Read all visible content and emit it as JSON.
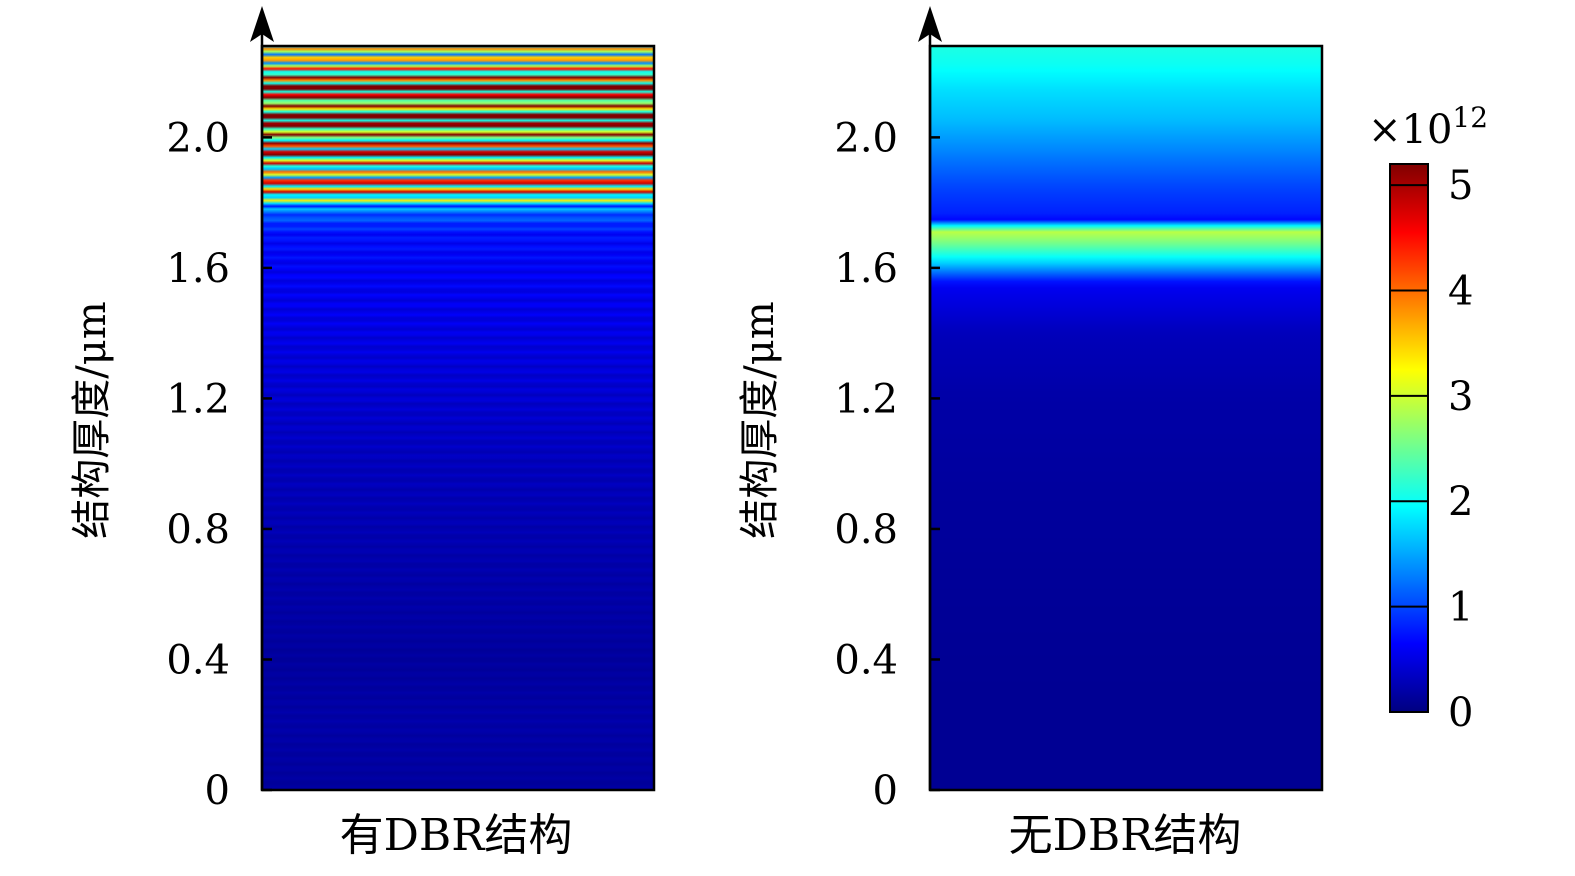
{
  "chart_data": [
    {
      "type": "heatmap",
      "title": "",
      "xlabel": "有DBR结构",
      "ylabel": "结构厚度/μm",
      "ylim": [
        0,
        2.28
      ],
      "yticks": [
        0,
        0.4,
        0.8,
        1.2,
        1.6,
        2.0
      ],
      "ytick_labels": [
        "0",
        "0.4",
        "0.8",
        "1.2",
        "1.6",
        "2.0"
      ],
      "profile": {
        "description_units": "value ×10^12 versus structure thickness (μm)",
        "y": [
          0,
          0.2,
          0.4,
          0.6,
          0.8,
          1.0,
          1.2,
          1.4,
          1.6,
          1.7,
          1.78,
          1.85,
          1.9,
          1.95,
          2.0,
          2.05,
          2.1,
          2.15,
          2.2,
          2.28
        ],
        "values": [
          0.15,
          0.2,
          0.15,
          0.2,
          0.25,
          0.3,
          0.4,
          0.5,
          0.6,
          0.7,
          1.2,
          3.8,
          2.5,
          4.0,
          3.2,
          4.6,
          3.5,
          4.8,
          3.0,
          2.5
        ],
        "oscillation": true
      }
    },
    {
      "type": "heatmap",
      "title": "",
      "xlabel": "无DBR结构",
      "ylabel": "结构厚度/μm",
      "ylim": [
        0,
        2.28
      ],
      "yticks": [
        0,
        0.4,
        0.8,
        1.2,
        1.6,
        2.0
      ],
      "ytick_labels": [
        "0",
        "0.4",
        "0.8",
        "1.2",
        "1.6",
        "2.0"
      ],
      "profile": {
        "y": [
          0,
          0.3,
          0.6,
          0.9,
          1.2,
          1.4,
          1.55,
          1.62,
          1.68,
          1.72,
          1.74,
          1.76,
          1.85,
          1.95,
          2.05,
          2.15,
          2.22,
          2.28
        ],
        "values": [
          0.1,
          0.1,
          0.12,
          0.15,
          0.2,
          0.3,
          0.6,
          1.8,
          2.6,
          3.0,
          0.6,
          0.8,
          1.0,
          1.3,
          1.6,
          1.8,
          2.0,
          2.1
        ],
        "oscillation": false
      }
    }
  ],
  "colorbar": {
    "multiplier_label": "×10",
    "multiplier_exponent": "12",
    "ticks": [
      0,
      1,
      2,
      3,
      4,
      5
    ],
    "tick_labels": [
      "0",
      "1",
      "2",
      "3",
      "4",
      "5"
    ],
    "range": [
      0,
      5.2
    ],
    "colormap": "jet"
  }
}
